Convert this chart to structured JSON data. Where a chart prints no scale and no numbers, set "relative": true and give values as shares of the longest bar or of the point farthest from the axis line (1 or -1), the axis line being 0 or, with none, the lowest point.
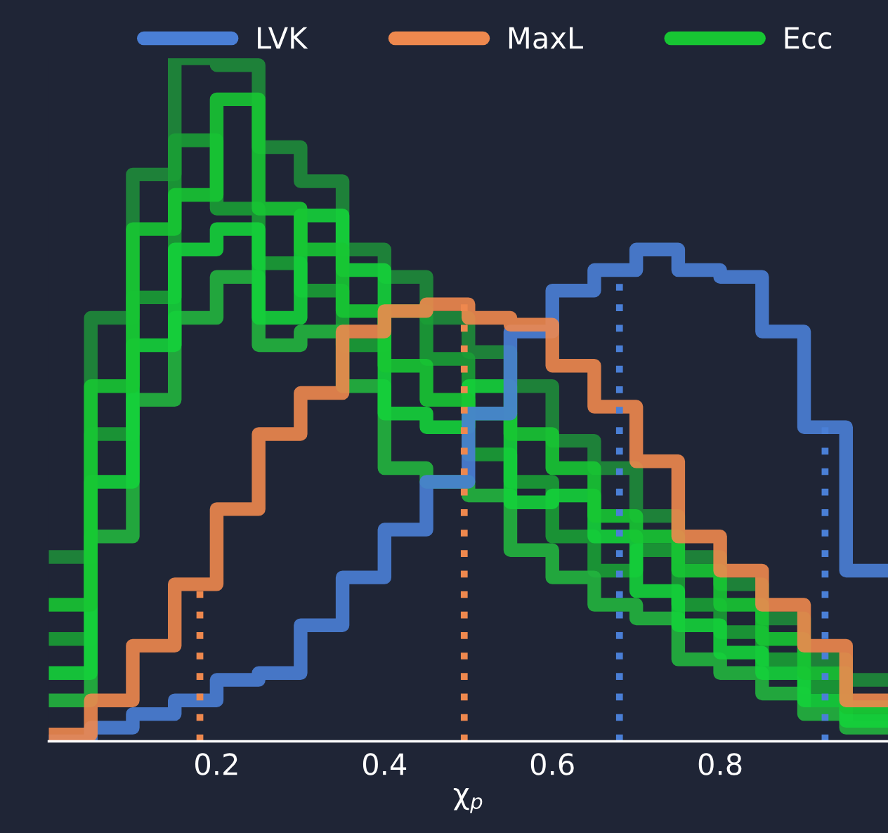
{
  "chart_data": {
    "type": "step",
    "relative": true,
    "xlabel": "χ$_{p}$",
    "x": [
      0,
      0.05,
      0.1,
      0.15,
      0.2,
      0.25,
      0.3,
      0.35,
      0.4,
      0.45,
      0.5,
      0.55,
      0.6,
      0.65,
      0.7,
      0.75,
      0.8,
      0.85,
      0.9,
      0.95,
      1.0
    ],
    "xlim": [
      0,
      1.0
    ],
    "xticks": [
      0.2,
      0.4,
      0.6,
      0.8
    ],
    "series": [
      {
        "color": "#1e8c3a",
        "values": [
          0.27,
          0.62,
          0.83,
          1.0,
          0.99,
          0.87,
          0.82,
          0.72,
          0.68,
          0.62,
          0.57,
          0.52,
          0.44,
          0.4,
          0.33,
          0.27,
          0.23,
          0.18,
          0.12,
          0.09,
          0.09
        ]
      },
      {
        "color": "#1a9e35",
        "values": [
          0.15,
          0.45,
          0.65,
          0.88,
          0.78,
          0.7,
          0.66,
          0.58,
          0.63,
          0.56,
          0.42,
          0.38,
          0.3,
          0.25,
          0.28,
          0.2,
          0.16,
          0.12,
          0.08,
          0.04,
          0.04
        ]
      },
      {
        "color": "#22b53e",
        "values": [
          0.06,
          0.3,
          0.5,
          0.62,
          0.68,
          0.58,
          0.6,
          0.52,
          0.4,
          0.38,
          0.36,
          0.28,
          0.24,
          0.2,
          0.18,
          0.12,
          0.1,
          0.07,
          0.04,
          0.02,
          0.02
        ]
      },
      {
        "color": "#14d23a",
        "values": [
          0.1,
          0.38,
          0.58,
          0.72,
          0.75,
          0.62,
          0.77,
          0.69,
          0.48,
          0.46,
          0.52,
          0.35,
          0.36,
          0.3,
          0.22,
          0.17,
          0.13,
          0.1,
          0.06,
          0.03,
          0.03
        ]
      },
      {
        "name": "Ecc",
        "color": "#17c633",
        "values": [
          0.2,
          0.52,
          0.75,
          0.8,
          0.94,
          0.78,
          0.72,
          0.63,
          0.55,
          0.5,
          0.48,
          0.45,
          0.4,
          0.33,
          0.3,
          0.25,
          0.2,
          0.15,
          0.1,
          0.05,
          0.05
        ]
      },
      {
        "name": "LVK",
        "color": "#4a7fd6",
        "values": [
          0,
          0.02,
          0.04,
          0.06,
          0.09,
          0.1,
          0.17,
          0.24,
          0.31,
          0.38,
          0.48,
          0.6,
          0.66,
          0.69,
          0.72,
          0.69,
          0.68,
          0.6,
          0.46,
          0.25,
          0.25
        ]
      },
      {
        "name": "MaxL",
        "color": "#ee884e",
        "values": [
          0.01,
          0.06,
          0.14,
          0.23,
          0.34,
          0.45,
          0.51,
          0.6,
          0.63,
          0.64,
          0.62,
          0.61,
          0.55,
          0.49,
          0.41,
          0.3,
          0.25,
          0.2,
          0.14,
          0.06,
          0.06
        ]
      }
    ],
    "ref_lines": [
      {
        "axis": "x",
        "value": 0.18,
        "color": "#ee884e",
        "line_style": "dotted"
      },
      {
        "axis": "x",
        "value": 0.495,
        "color": "#ee884e",
        "line_style": "dotted"
      },
      {
        "axis": "x",
        "value": 0.68,
        "color": "#4a7fd6",
        "line_style": "dotted"
      },
      {
        "axis": "x",
        "value": 0.925,
        "color": "#4a7fd6",
        "line_style": "dotted"
      }
    ],
    "legend": "top",
    "tick_labels": "x"
  }
}
